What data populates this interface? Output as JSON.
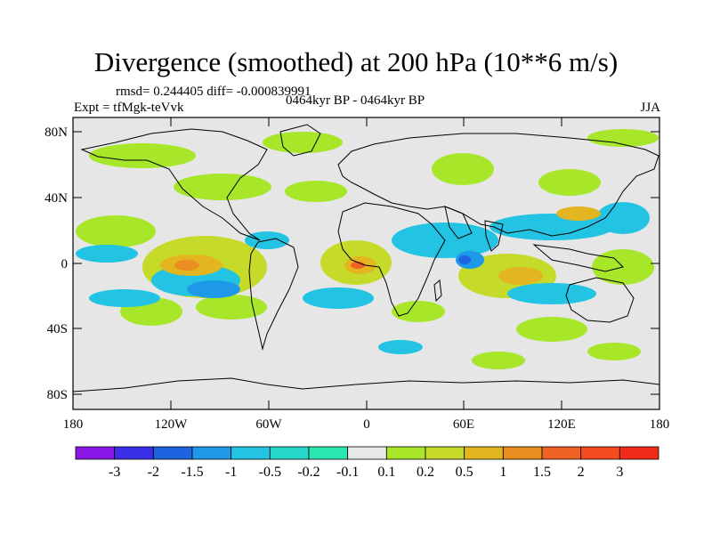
{
  "title": "Divergence (smoothed) at 200 hPa (10**6 m/s)",
  "stats_line": "rmsd= 0.244405 diff= -0.000839991",
  "experiment_line": "Expt = tfMgk-teVvk",
  "center_label": "0464kyr BP - 0464kyr BP",
  "season": "JJA",
  "lat_ticks": [
    "80N",
    "40N",
    "0",
    "40S",
    "80S"
  ],
  "lon_ticks": [
    "180",
    "120W",
    "60W",
    "0",
    "60E",
    "120E",
    "180"
  ],
  "colorbar": {
    "labels": [
      "-3",
      "-2",
      "-1.5",
      "-1",
      "-0.5",
      "-0.2",
      "-0.1",
      "0.1",
      "0.2",
      "0.5",
      "1",
      "1.5",
      "2",
      "3"
    ],
    "colors": [
      "#8a17e6",
      "#3b2ee8",
      "#1e63e0",
      "#1e98e8",
      "#22c3e3",
      "#25d6c9",
      "#2ce6b0",
      "#e8e8e8",
      "#a8e62a",
      "#c6da2a",
      "#e2b521",
      "#ea8e22",
      "#ef6223",
      "#f34a1f",
      "#f22a1a"
    ]
  }
}
